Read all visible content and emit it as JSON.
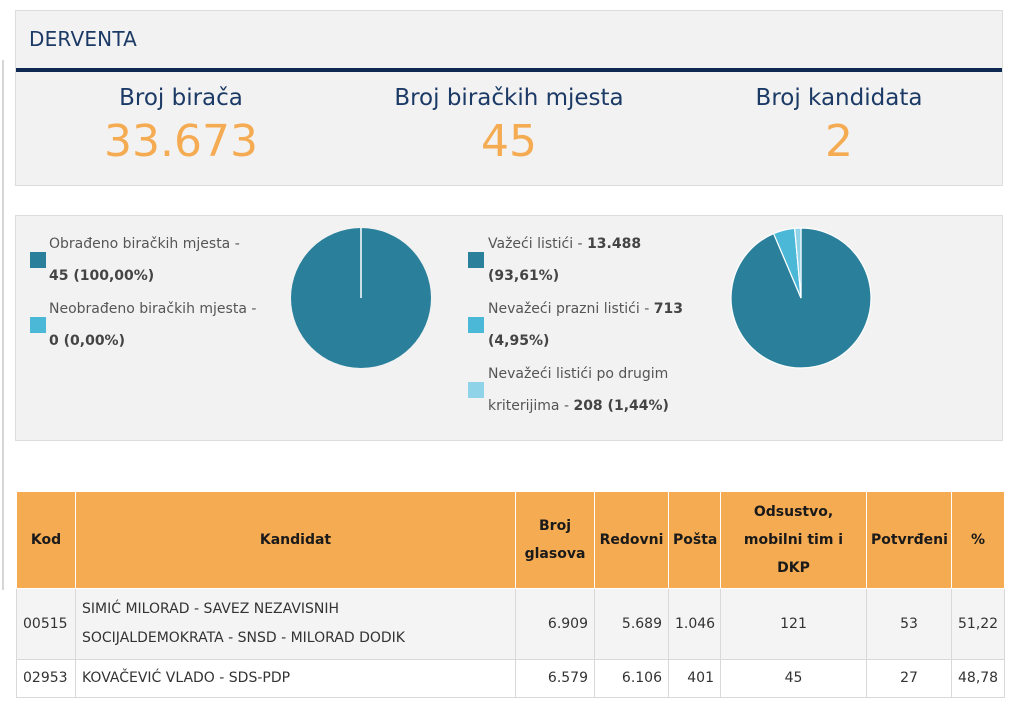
{
  "header": {
    "title": "DERVENTA"
  },
  "stats": [
    {
      "label": "Broj birača",
      "value": "33.673"
    },
    {
      "label": "Broj biračkih mjesta",
      "value": "45"
    },
    {
      "label": "Broj kandidata",
      "value": "2"
    }
  ],
  "colors": {
    "navy": "#0e2a52",
    "orange": "#f5ab52",
    "teal": "#2a809b",
    "cyan": "#4cb8d8",
    "light_blue": "#8ed3e8"
  },
  "stations_chart": {
    "legend": [
      {
        "text": "Obrađeno biračkih mjesta -",
        "value": "45 (100,00%)",
        "color": "#2a809b"
      },
      {
        "text": "Neobrađeno biračkih mjesta -",
        "value": "0 (0,00%)",
        "color": "#4cb8d8"
      }
    ]
  },
  "ballots_chart": {
    "legend": [
      {
        "text": "Važeći listići -",
        "value": "13.488",
        "value2": "(93,61%)",
        "color": "#2a809b"
      },
      {
        "text": "Nevažeći prazni listići -",
        "value": "713",
        "value2": "(4,95%)",
        "color": "#4cb8d8"
      },
      {
        "text": "Nevažeći listići po drugim",
        "text2": "kriterijima -",
        "value": "208 (1,44%)",
        "color": "#8ed3e8"
      }
    ]
  },
  "chart_data": [
    {
      "type": "pie",
      "labels": [
        "Obrađeno biračkih mjesta",
        "Neobrađeno biračkih mjesta"
      ],
      "values": [
        45,
        0
      ],
      "percentages": [
        100.0,
        0.0
      ],
      "colors": [
        "#2a809b",
        "#4cb8d8"
      ]
    },
    {
      "type": "pie",
      "labels": [
        "Važeći listići",
        "Nevažeći prazni listići",
        "Nevažeći listići po drugim kriterijima"
      ],
      "values": [
        13488,
        713,
        208
      ],
      "percentages": [
        93.61,
        4.95,
        1.44
      ],
      "colors": [
        "#2a809b",
        "#4cb8d8",
        "#8ed3e8"
      ]
    }
  ],
  "table": {
    "headers": {
      "kod": "Kod",
      "kandidat": "Kandidat",
      "broj1": "Broj",
      "broj2": "glasova",
      "redovni": "Redovni",
      "posta": "Pošta",
      "ods1": "Odsustvo,",
      "ods2": "mobilni tim i",
      "ods3": "DKP",
      "potvrdeni": "Potvrđeni",
      "pct": "%"
    },
    "rows": [
      {
        "kod": "00515",
        "name1": "SIMIĆ MILORAD - SAVEZ NEZAVISNIH",
        "name2": "SOCIJALDEMOKRATA - SNSD - MILORAD DODIK",
        "glasova": "6.909",
        "redovni": "5.689",
        "posta": "1.046",
        "odsustvo": "121",
        "potvrdeni": "53",
        "pct": "51,22"
      },
      {
        "kod": "02953",
        "name1": "KOVAČEVIĆ VLADO - SDS-PDP",
        "glasova": "6.579",
        "redovni": "6.106",
        "posta": "401",
        "odsustvo": "45",
        "potvrdeni": "27",
        "pct": "48,78"
      }
    ]
  }
}
